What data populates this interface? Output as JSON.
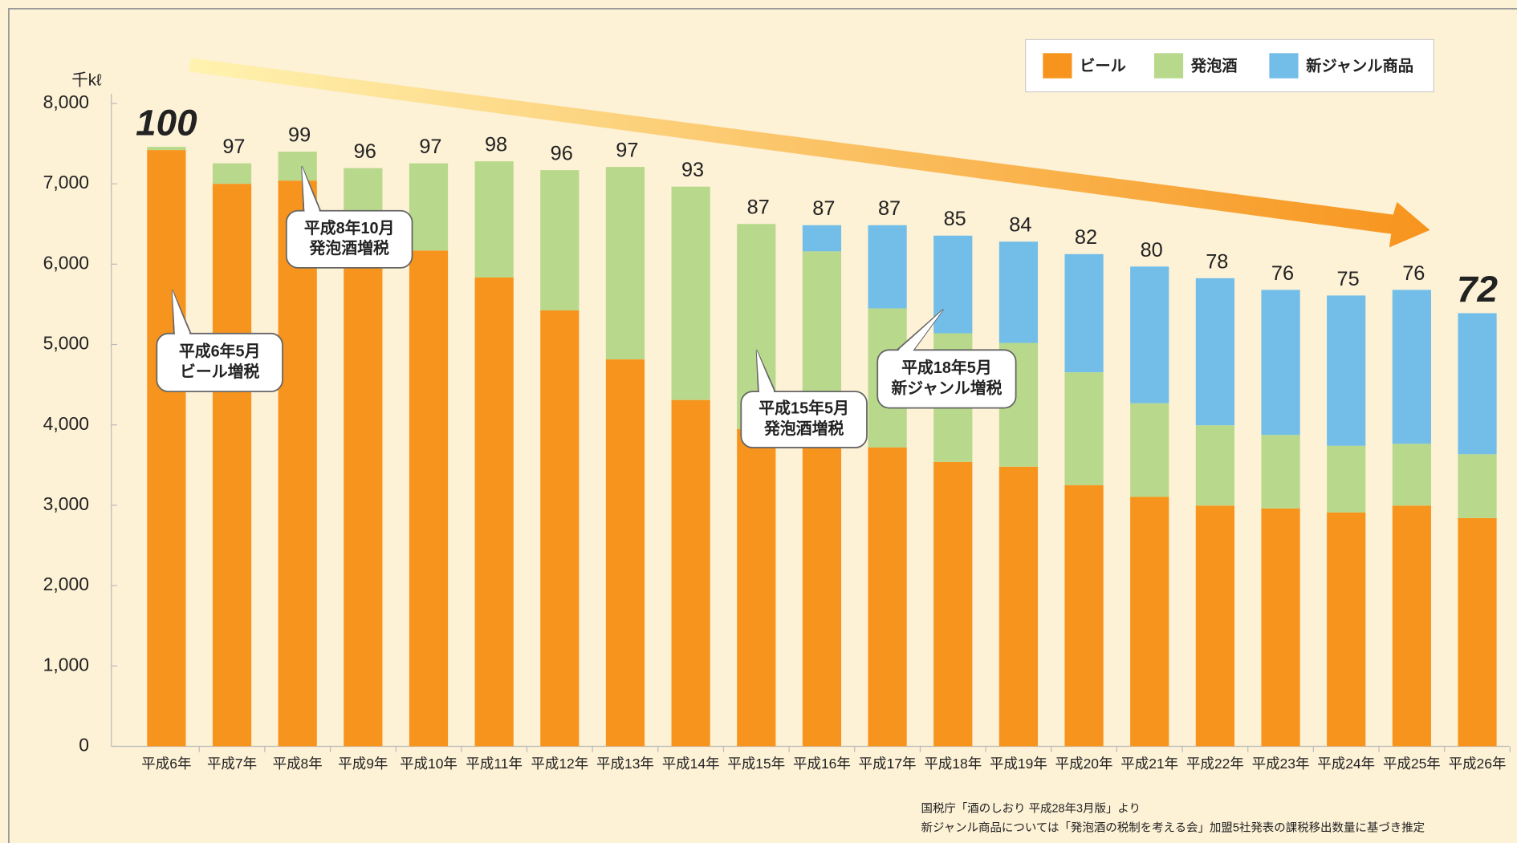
{
  "chart_data": {
    "type": "stacked_bar",
    "unit_label": "千kℓ",
    "categories": [
      "平成6年",
      "平成7年",
      "平成8年",
      "平成9年",
      "平成10年",
      "平成11年",
      "平成12年",
      "平成13年",
      "平成14年",
      "平成15年",
      "平成16年",
      "平成17年",
      "平成18年",
      "平成19年",
      "平成20年",
      "平成21年",
      "平成22年",
      "平成23年",
      "平成24年",
      "平成25年",
      "平成26年"
    ],
    "series": [
      {
        "name": "ビール",
        "color": "#f7941d",
        "values": [
          7420,
          7000,
          7040,
          6300,
          6170,
          5835,
          5425,
          4815,
          4310,
          3950,
          3800,
          3720,
          3540,
          3480,
          3250,
          3105,
          2995,
          2960,
          2910,
          2995,
          2840
        ]
      },
      {
        "name": "発泡酒",
        "color": "#b8d98b",
        "values": [
          40,
          255,
          360,
          895,
          1085,
          1445,
          1745,
          2395,
          2655,
          2550,
          2360,
          1730,
          1600,
          1540,
          1405,
          1165,
          1000,
          915,
          830,
          770,
          795
        ]
      },
      {
        "name": "新ジャンル商品",
        "color": "#72bee8",
        "values": [
          0,
          0,
          0,
          0,
          0,
          0,
          0,
          0,
          0,
          0,
          325,
          1035,
          1215,
          1260,
          1470,
          1700,
          1830,
          1805,
          1870,
          1915,
          1755
        ]
      }
    ],
    "index_labels": [
      100,
      97,
      99,
      96,
      97,
      98,
      96,
      97,
      93,
      87,
      87,
      87,
      85,
      84,
      82,
      80,
      78,
      76,
      75,
      76,
      72
    ],
    "ylim": [
      0,
      8000
    ],
    "yticks": [
      0,
      {
        "value": 1000,
        "label": "1,000"
      },
      {
        "value": 2000,
        "label": "2,000"
      },
      {
        "value": 3000,
        "label": "3,000"
      },
      {
        "value": 4000,
        "label": "4,000"
      },
      {
        "value": 5000,
        "label": "5,000"
      },
      {
        "value": 6000,
        "label": "6,000"
      },
      {
        "value": 7000,
        "label": "7,000"
      },
      {
        "value": 8000,
        "label": "8,000"
      }
    ],
    "legend": "top-right",
    "annotations": [
      {
        "lines": [
          "平成6年5月",
          "ビール増税"
        ]
      },
      {
        "lines": [
          "平成8年10月",
          "発泡酒増税"
        ]
      },
      {
        "lines": [
          "平成15年5月",
          "発泡酒増税"
        ]
      },
      {
        "lines": [
          "平成18年5月",
          "新ジャンル増税"
        ]
      }
    ],
    "source": [
      "国税庁「酒のしおり 平成28年3月版」より",
      "新ジャンル商品については「発泡酒の税制を考える会」加盟5社発表の課税移出数量に基づき推定"
    ]
  }
}
